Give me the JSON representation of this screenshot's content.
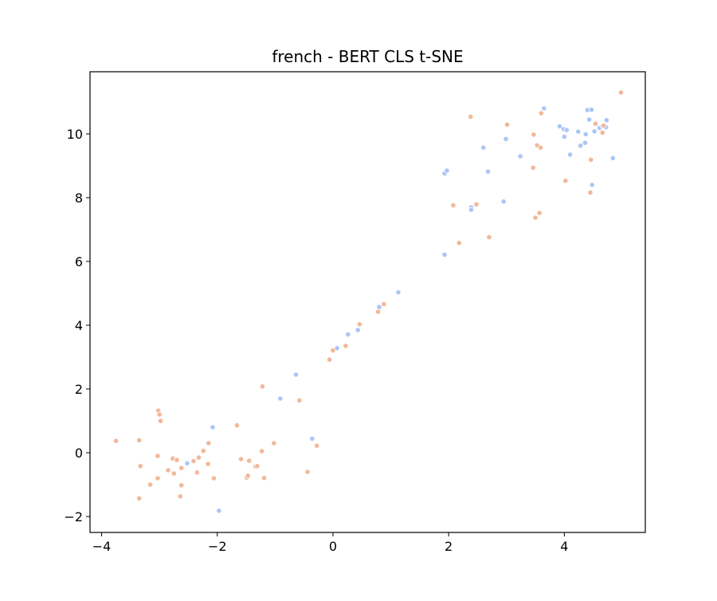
{
  "chart_data": {
    "type": "scatter",
    "title": "french - BERT CLS t-SNE",
    "xlabel": "",
    "ylabel": "",
    "xlim": [
      -4.2,
      5.4
    ],
    "ylim": [
      -2.5,
      11.95
    ],
    "x_ticks": [
      -4,
      -2,
      0,
      2,
      4
    ],
    "x_tick_labels": [
      "−4",
      "−2",
      "0",
      "2",
      "4"
    ],
    "y_ticks": [
      -2,
      0,
      2,
      4,
      6,
      8,
      10
    ],
    "y_tick_labels": [
      "−2",
      "0",
      "2",
      "4",
      "6",
      "8",
      "10"
    ],
    "grid": false,
    "legend": "none",
    "series": [
      {
        "color": "#abc6f6",
        "points": [
          [
            -2.52,
            -0.33
          ],
          [
            -2.08,
            0.8
          ],
          [
            -1.97,
            -1.82
          ],
          [
            -0.91,
            1.7
          ],
          [
            -0.64,
            2.45
          ],
          [
            -0.36,
            0.44
          ],
          [
            0.07,
            3.28
          ],
          [
            0.26,
            3.71
          ],
          [
            0.43,
            3.85
          ],
          [
            0.8,
            4.57
          ],
          [
            1.13,
            5.03
          ],
          [
            1.93,
            6.21
          ],
          [
            1.93,
            8.76
          ],
          [
            1.97,
            8.85
          ],
          [
            2.39,
            7.7
          ],
          [
            2.39,
            7.62
          ],
          [
            2.6,
            9.57
          ],
          [
            2.68,
            8.82
          ],
          [
            2.95,
            7.88
          ],
          [
            2.99,
            9.84
          ],
          [
            3.24,
            9.3
          ],
          [
            3.65,
            10.8
          ],
          [
            3.92,
            10.24
          ],
          [
            3.99,
            10.15
          ],
          [
            4.0,
            9.91
          ],
          [
            4.04,
            10.12
          ],
          [
            4.1,
            9.35
          ],
          [
            4.24,
            10.07
          ],
          [
            4.28,
            9.63
          ],
          [
            4.36,
            9.72
          ],
          [
            4.37,
            9.99
          ],
          [
            4.4,
            10.75
          ],
          [
            4.43,
            10.45
          ],
          [
            4.47,
            10.76
          ],
          [
            4.48,
            8.4
          ],
          [
            4.52,
            10.08
          ],
          [
            4.61,
            10.19
          ],
          [
            4.66,
            10.25
          ],
          [
            4.72,
            10.21
          ],
          [
            4.73,
            10.43
          ],
          [
            4.84,
            9.24
          ]
        ]
      },
      {
        "color": "#f2b89a",
        "points": [
          [
            -3.75,
            0.37
          ],
          [
            -3.35,
            0.39
          ],
          [
            -3.33,
            -0.42
          ],
          [
            -3.35,
            -1.43
          ],
          [
            -3.16,
            -1.0
          ],
          [
            -3.03,
            -0.8
          ],
          [
            -3.03,
            -0.1
          ],
          [
            -3.02,
            1.32
          ],
          [
            -3.0,
            1.2
          ],
          [
            -2.98,
            1.0
          ],
          [
            -2.85,
            -0.55
          ],
          [
            -2.77,
            -0.18
          ],
          [
            -2.75,
            -0.65
          ],
          [
            -2.7,
            -0.23
          ],
          [
            -2.64,
            -1.37
          ],
          [
            -2.62,
            -0.48
          ],
          [
            -2.62,
            -1.02
          ],
          [
            -2.41,
            -0.26
          ],
          [
            -2.35,
            -0.62
          ],
          [
            -2.32,
            -0.15
          ],
          [
            -2.24,
            0.06
          ],
          [
            -2.16,
            -0.35
          ],
          [
            -2.15,
            0.3
          ],
          [
            -2.06,
            -0.8
          ],
          [
            -1.66,
            0.86
          ],
          [
            -1.59,
            -0.2
          ],
          [
            -1.49,
            -0.78
          ],
          [
            -1.47,
            -0.72
          ],
          [
            -1.45,
            -0.25
          ],
          [
            -1.34,
            -0.43
          ],
          [
            -1.31,
            -0.42
          ],
          [
            -1.23,
            0.05
          ],
          [
            -1.22,
            2.08
          ],
          [
            -1.19,
            -0.79
          ],
          [
            -1.02,
            0.3
          ],
          [
            -0.58,
            1.64
          ],
          [
            -0.44,
            -0.6
          ],
          [
            -0.28,
            0.22
          ],
          [
            -0.06,
            2.92
          ],
          [
            0.0,
            3.21
          ],
          [
            0.22,
            3.35
          ],
          [
            0.46,
            4.03
          ],
          [
            0.78,
            4.42
          ],
          [
            0.88,
            4.66
          ],
          [
            2.08,
            7.76
          ],
          [
            2.18,
            6.58
          ],
          [
            2.38,
            10.54
          ],
          [
            2.48,
            7.79
          ],
          [
            2.7,
            6.76
          ],
          [
            3.01,
            10.29
          ],
          [
            3.46,
            8.94
          ],
          [
            3.47,
            9.98
          ],
          [
            3.5,
            7.37
          ],
          [
            3.53,
            9.64
          ],
          [
            3.57,
            7.52
          ],
          [
            3.59,
            9.57
          ],
          [
            3.6,
            10.65
          ],
          [
            4.02,
            8.53
          ],
          [
            4.45,
            8.16
          ],
          [
            4.46,
            9.19
          ],
          [
            4.54,
            10.32
          ],
          [
            4.66,
            10.04
          ],
          [
            4.68,
            10.26
          ],
          [
            4.98,
            11.3
          ]
        ]
      }
    ]
  }
}
